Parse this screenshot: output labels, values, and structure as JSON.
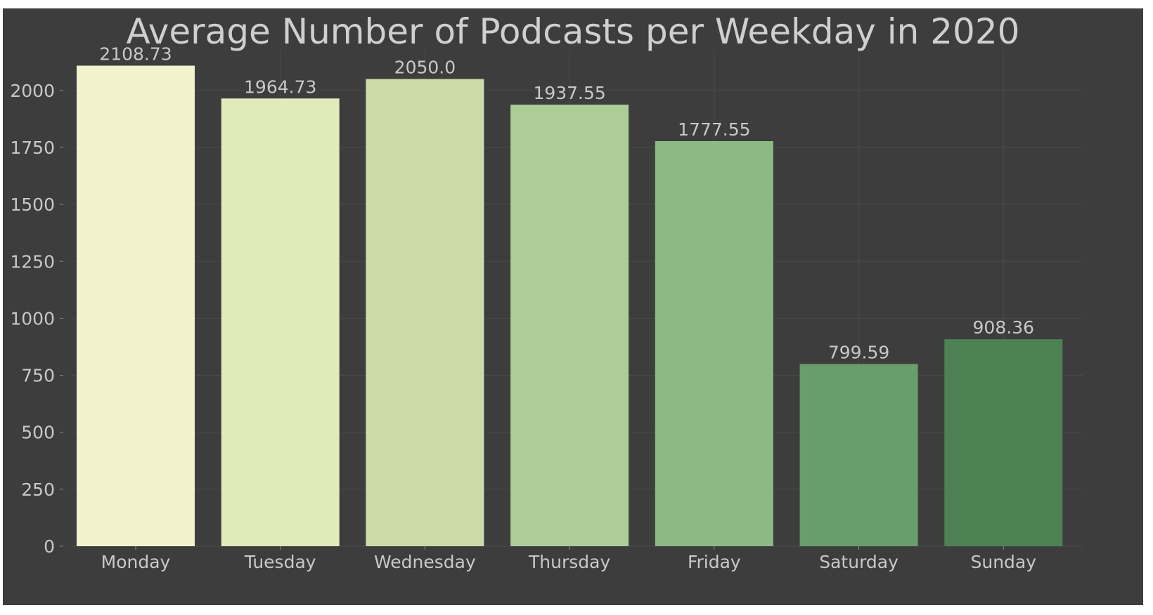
{
  "chart_data": {
    "type": "bar",
    "title": "Average Number of Podcasts per Weekday in 2020",
    "xlabel": "",
    "ylabel": "",
    "categories": [
      "Monday",
      "Tuesday",
      "Wednesday",
      "Thursday",
      "Friday",
      "Saturday",
      "Sunday"
    ],
    "values": [
      2108.73,
      1964.73,
      2050.0,
      1937.55,
      1777.55,
      799.59,
      908.36
    ],
    "value_labels": [
      "2108.73",
      "1964.73",
      "2050.0",
      "1937.55",
      "1777.55",
      "799.59",
      "908.36"
    ],
    "bar_colors": [
      "#f2f2cc",
      "#e0eabb",
      "#cbdcaa",
      "#accc98",
      "#8db985",
      "#6a9d6c",
      "#4d8154"
    ],
    "ylim": [
      0,
      2175
    ],
    "yticks": [
      0,
      250,
      500,
      750,
      1000,
      1250,
      1500,
      1750,
      2000
    ],
    "grid": true,
    "legend": false,
    "colors": {
      "plot_background": "#3d3d3d",
      "page_background": "#ffffff",
      "text": "#c8c8c8",
      "grid": "#4a4a4a"
    }
  }
}
